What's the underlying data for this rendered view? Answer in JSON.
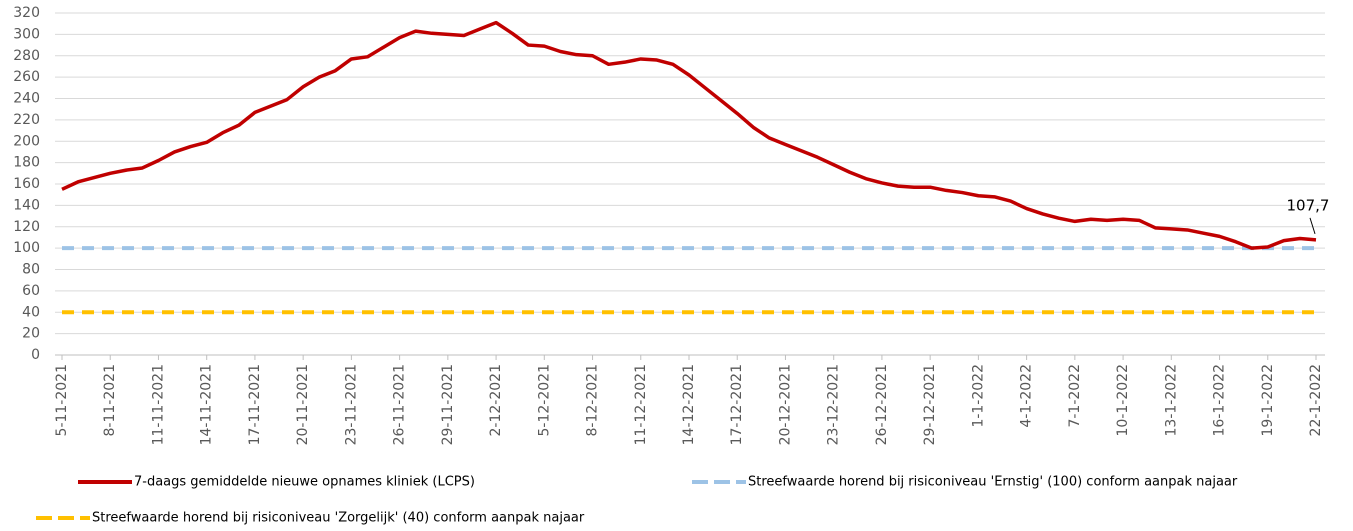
{
  "chart_data": {
    "type": "line",
    "categories": [
      "5-11-2021",
      null,
      null,
      "8-11-2021",
      null,
      null,
      "11-11-2021",
      null,
      null,
      "14-11-2021",
      null,
      null,
      "17-11-2021",
      null,
      null,
      "20-11-2021",
      null,
      null,
      "23-11-2021",
      null,
      null,
      "26-11-2021",
      null,
      null,
      "29-11-2021",
      null,
      null,
      "2-12-2021",
      null,
      null,
      "5-12-2021",
      null,
      null,
      "8-12-2021",
      null,
      null,
      "11-12-2021",
      null,
      null,
      "14-12-2021",
      null,
      null,
      "17-12-2021",
      null,
      null,
      "20-12-2021",
      null,
      null,
      "23-12-2021",
      null,
      null,
      "26-12-2021",
      null,
      null,
      "29-12-2021",
      null,
      null,
      "1-1-2022",
      null,
      null,
      "4-1-2022",
      null,
      null,
      "7-1-2022",
      null,
      null,
      "10-1-2022",
      null,
      null,
      "13-1-2022",
      null,
      null,
      "16-1-2022",
      null,
      null,
      "19-1-2022",
      null,
      null,
      "22-1-2022"
    ],
    "series": [
      {
        "name": "7-daags gemiddelde nieuwe opnames kliniek (LCPS)",
        "color": "#c00000",
        "dashed": false,
        "values": [
          155,
          162,
          166,
          170,
          173,
          175,
          182,
          190,
          195,
          199,
          208,
          215,
          227,
          233,
          239,
          251,
          260,
          266,
          277,
          279,
          288,
          297,
          303,
          301,
          300,
          299,
          305,
          311,
          301,
          290,
          289,
          284,
          281,
          280,
          272,
          274,
          277,
          276,
          272,
          262,
          250,
          238,
          226,
          213,
          203,
          197,
          191,
          185,
          178,
          171,
          165,
          161,
          158,
          157,
          157,
          154,
          152,
          149,
          148,
          144,
          137,
          132,
          128,
          125,
          127,
          126,
          127,
          126,
          119,
          118,
          117,
          114,
          111,
          106,
          100,
          101,
          107,
          109,
          107.7
        ]
      },
      {
        "name": "Streefwaarde horend bij risiconiveau 'Ernstig' (100) conform aanpak najaar",
        "color": "#9dc3e6",
        "dashed": true,
        "values": [
          100,
          100,
          100,
          100,
          100,
          100,
          100,
          100,
          100,
          100,
          100,
          100,
          100,
          100,
          100,
          100,
          100,
          100,
          100,
          100,
          100,
          100,
          100,
          100,
          100,
          100,
          100,
          100,
          100,
          100,
          100,
          100,
          100,
          100,
          100,
          100,
          100,
          100,
          100,
          100,
          100,
          100,
          100,
          100,
          100,
          100,
          100,
          100,
          100,
          100,
          100,
          100,
          100,
          100,
          100,
          100,
          100,
          100,
          100,
          100,
          100,
          100,
          100,
          100,
          100,
          100,
          100,
          100,
          100,
          100,
          100,
          100,
          100,
          100,
          100,
          100,
          100,
          100,
          100
        ]
      },
      {
        "name": "Streefwaarde horend bij risiconiveau 'Zorgelijk' (40) conform aanpak najaar",
        "color": "#ffc000",
        "dashed": true,
        "values": [
          40,
          40,
          40,
          40,
          40,
          40,
          40,
          40,
          40,
          40,
          40,
          40,
          40,
          40,
          40,
          40,
          40,
          40,
          40,
          40,
          40,
          40,
          40,
          40,
          40,
          40,
          40,
          40,
          40,
          40,
          40,
          40,
          40,
          40,
          40,
          40,
          40,
          40,
          40,
          40,
          40,
          40,
          40,
          40,
          40,
          40,
          40,
          40,
          40,
          40,
          40,
          40,
          40,
          40,
          40,
          40,
          40,
          40,
          40,
          40,
          40,
          40,
          40,
          40,
          40,
          40,
          40,
          40,
          40,
          40,
          40,
          40,
          40,
          40,
          40,
          40,
          40,
          40,
          40
        ]
      }
    ],
    "annotation": "107,7",
    "ylim": [
      0,
      320
    ],
    "yticks": [
      0,
      20,
      40,
      60,
      80,
      100,
      120,
      140,
      160,
      180,
      200,
      220,
      240,
      260,
      280,
      300,
      320
    ],
    "grid": true
  }
}
